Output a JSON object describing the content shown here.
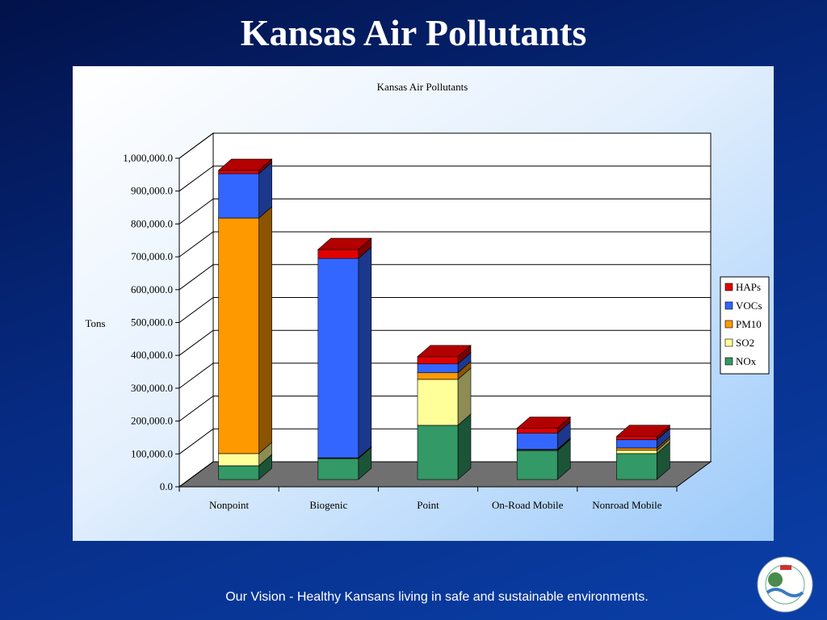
{
  "slide": {
    "title": "Kansas Air Pollutants",
    "footer": "Our Vision - Healthy Kansans living in safe and sustainable environments."
  },
  "chart_data": {
    "type": "bar3d-stacked",
    "title": "Kansas Air Pollutants",
    "y_label": "Tons",
    "categories": [
      "Nonpoint",
      "Biogenic",
      "Point",
      "On-Road Mobile",
      "Nonroad Mobile"
    ],
    "series": [
      {
        "name": "NOx",
        "color": "#339966",
        "values": [
          42000,
          64000,
          165000,
          88000,
          79000
        ]
      },
      {
        "name": "SO2",
        "color": "#ffff99",
        "values": [
          37000,
          1000,
          140000,
          2000,
          10000
        ]
      },
      {
        "name": "PM10",
        "color": "#ff9900",
        "values": [
          717000,
          1000,
          20000,
          2000,
          7000
        ]
      },
      {
        "name": "VOCs",
        "color": "#3366ff",
        "values": [
          135000,
          607000,
          27000,
          49000,
          25000
        ]
      },
      {
        "name": "HAPs",
        "color": "#e00000",
        "values": [
          10000,
          27000,
          22000,
          15000,
          10000
        ]
      }
    ],
    "ylim": [
      0,
      1000000
    ],
    "yticks": [
      {
        "value": 0,
        "label": "0.0"
      },
      {
        "value": 100000,
        "label": "100,000.0"
      },
      {
        "value": 200000,
        "label": "200,000.0"
      },
      {
        "value": 300000,
        "label": "300,000.0"
      },
      {
        "value": 400000,
        "label": "400,000.0"
      },
      {
        "value": 500000,
        "label": "500,000.0"
      },
      {
        "value": 600000,
        "label": "600,000.0"
      },
      {
        "value": 700000,
        "label": "700,000.0"
      },
      {
        "value": 800000,
        "label": "800,000.0"
      },
      {
        "value": 900000,
        "label": "900,000.0"
      },
      {
        "value": 1000000,
        "label": "1,000,000.0"
      }
    ],
    "grid": true,
    "legend": "right"
  }
}
